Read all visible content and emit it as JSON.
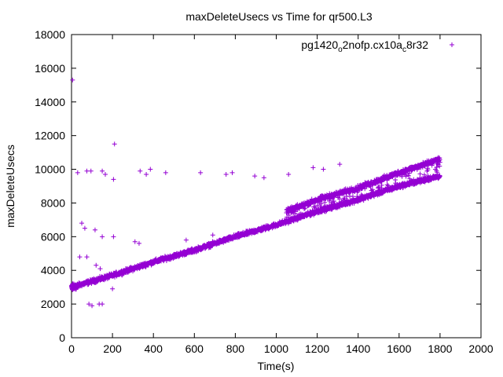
{
  "chart_data": {
    "type": "scatter",
    "title": "maxDeleteUsecs vs Time for qr500.L3",
    "xlabel": "Time(s)",
    "ylabel": "maxDeleteUsecs",
    "xlim": [
      0,
      2000
    ],
    "ylim": [
      0,
      18000
    ],
    "x_ticks": [
      "0",
      "200",
      "400",
      "600",
      "800",
      "1000",
      "1200",
      "1400",
      "1600",
      "1800",
      "2000"
    ],
    "y_ticks": [
      "0",
      "2000",
      "4000",
      "6000",
      "8000",
      "10000",
      "12000",
      "14000",
      "16000",
      "18000"
    ],
    "legend_position": "top-right",
    "marker": "plus",
    "series": [
      {
        "name": "pg1420_o2nofp.cx10a_c8r32",
        "legend_parts": {
          "a": "pg1420",
          "b": "o",
          "c": "2nofp.cx10a",
          "d": "c",
          "e": "8r32"
        },
        "color": "#9400d3",
        "trend": [
          {
            "x": 0,
            "y": 3000
          },
          {
            "x": 200,
            "y": 3700
          },
          {
            "x": 400,
            "y": 4500
          },
          {
            "x": 600,
            "y": 5200
          },
          {
            "x": 800,
            "y": 6000
          },
          {
            "x": 1000,
            "y": 6700
          },
          {
            "x": 1200,
            "y": 7500
          },
          {
            "x": 1400,
            "y": 8200
          },
          {
            "x": 1600,
            "y": 9000
          },
          {
            "x": 1800,
            "y": 9600
          }
        ],
        "upper_band": [
          {
            "x": 1050,
            "y": 7500
          },
          {
            "x": 1200,
            "y": 8200
          },
          {
            "x": 1400,
            "y": 8900
          },
          {
            "x": 1600,
            "y": 9800
          },
          {
            "x": 1800,
            "y": 10600
          }
        ],
        "outliers": [
          {
            "x": 5,
            "y": 15300
          },
          {
            "x": 210,
            "y": 11500
          },
          {
            "x": 30,
            "y": 9800
          },
          {
            "x": 75,
            "y": 9900
          },
          {
            "x": 95,
            "y": 9900
          },
          {
            "x": 150,
            "y": 9900
          },
          {
            "x": 165,
            "y": 9700
          },
          {
            "x": 205,
            "y": 9400
          },
          {
            "x": 335,
            "y": 9900
          },
          {
            "x": 365,
            "y": 9700
          },
          {
            "x": 385,
            "y": 10000
          },
          {
            "x": 460,
            "y": 9800
          },
          {
            "x": 630,
            "y": 9800
          },
          {
            "x": 755,
            "y": 9700
          },
          {
            "x": 785,
            "y": 9800
          },
          {
            "x": 895,
            "y": 9600
          },
          {
            "x": 940,
            "y": 9500
          },
          {
            "x": 1060,
            "y": 9700
          },
          {
            "x": 1180,
            "y": 10100
          },
          {
            "x": 1230,
            "y": 10000
          },
          {
            "x": 1310,
            "y": 10300
          },
          {
            "x": 50,
            "y": 6800
          },
          {
            "x": 65,
            "y": 6500
          },
          {
            "x": 115,
            "y": 6400
          },
          {
            "x": 150,
            "y": 6000
          },
          {
            "x": 205,
            "y": 6000
          },
          {
            "x": 310,
            "y": 5700
          },
          {
            "x": 330,
            "y": 5600
          },
          {
            "x": 40,
            "y": 4800
          },
          {
            "x": 75,
            "y": 4800
          },
          {
            "x": 120,
            "y": 4300
          },
          {
            "x": 140,
            "y": 4100
          },
          {
            "x": 85,
            "y": 2000
          },
          {
            "x": 100,
            "y": 1900
          },
          {
            "x": 135,
            "y": 2000
          },
          {
            "x": 150,
            "y": 2000
          },
          {
            "x": 200,
            "y": 2900
          },
          {
            "x": 560,
            "y": 5800
          },
          {
            "x": 690,
            "y": 6100
          }
        ]
      }
    ]
  }
}
